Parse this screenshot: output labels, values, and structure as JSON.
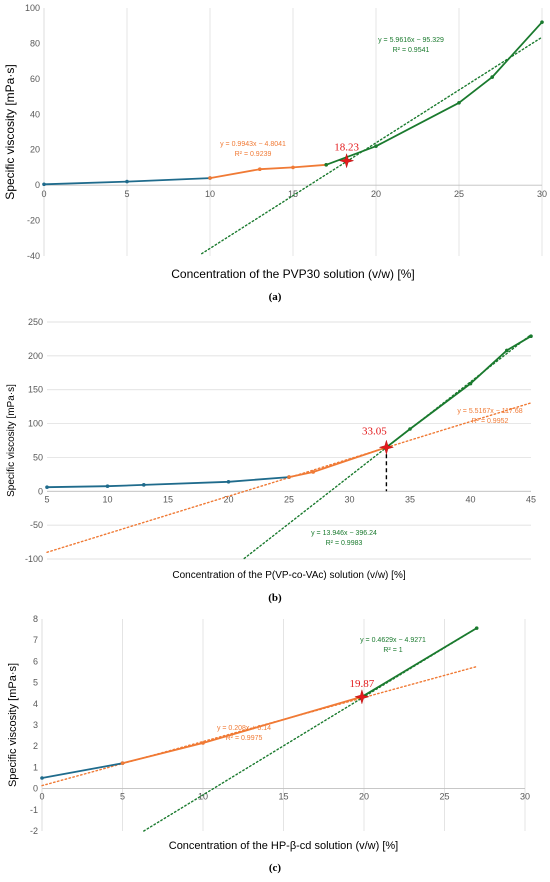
{
  "colors": {
    "blue": "#1f6b8c",
    "orange": "#f07a35",
    "green": "#1a7a2e",
    "red": "#e31a1c",
    "grid": "#d9d9d9"
  },
  "chart_data": [
    {
      "type": "line",
      "panel_label": "(a)",
      "xlabel": "Concentration of the PVP30 solution (v/w) [%]",
      "ylabel": "Specific viscosity [mPa·s]",
      "xlim": [
        0,
        30
      ],
      "ylim": [
        -40,
        100
      ],
      "xticks": [
        "0",
        "5",
        "10",
        "15",
        "20",
        "25",
        "30"
      ],
      "yticks": [
        "-40",
        "-20",
        "0",
        "20",
        "40",
        "60",
        "80",
        "100"
      ],
      "grid": "vertical",
      "series": [
        {
          "color": "blue",
          "x": [
            0,
            5,
            10
          ],
          "y": [
            0.5,
            2,
            4
          ]
        },
        {
          "color": "orange",
          "x": [
            10,
            13,
            15,
            17
          ],
          "y": [
            4,
            9,
            10,
            11.5
          ]
        },
        {
          "color": "green",
          "x": [
            17,
            20,
            25,
            27,
            30
          ],
          "y": [
            11.5,
            22,
            46.5,
            61,
            92
          ]
        }
      ],
      "trendlines": [
        {
          "color": "green",
          "equation": "y = 5.9616x − 95.329",
          "r2": "R² = 0.9541",
          "x_range": [
            9.5,
            30
          ]
        }
      ],
      "intersection": {
        "x": 18.23,
        "y": 13.8,
        "label": "18.23",
        "dropline": false
      },
      "annotations": [
        {
          "text": "y = 0.9943x − 4.8041",
          "sub": "R² = 0.9239",
          "color": "orange"
        }
      ]
    },
    {
      "type": "line",
      "panel_label": "(b)",
      "xlabel": "Concentration of the P(VP-co-VAc) solution (v/w) [%]",
      "ylabel": "Specific viscosity [mPa·s]",
      "xlim": [
        5,
        45
      ],
      "ylim": [
        -100,
        250
      ],
      "xticks": [
        "5",
        "10",
        "15",
        "20",
        "25",
        "30",
        "35",
        "40",
        "45"
      ],
      "yticks": [
        "-100",
        "-50",
        "0",
        "50",
        "100",
        "150",
        "200",
        "250"
      ],
      "grid": "horizontal",
      "series": [
        {
          "color": "blue",
          "x": [
            5,
            10,
            13,
            20,
            25
          ],
          "y": [
            6,
            7.5,
            9.5,
            14,
            21
          ]
        },
        {
          "color": "orange",
          "x": [
            25,
            27,
            33.05
          ],
          "y": [
            21,
            28.5,
            65
          ]
        },
        {
          "color": "green",
          "x": [
            33.05,
            35,
            40,
            43,
            45
          ],
          "y": [
            65,
            92,
            159,
            208,
            229
          ]
        }
      ],
      "trendlines": [
        {
          "color": "orange",
          "equation": "y = 5.5167x − 117.68",
          "r2": "R² = 0.9952",
          "x_range": [
            5,
            45
          ]
        },
        {
          "color": "green",
          "equation": "y = 13.946x − 396.24",
          "r2": "R² = 0.9983",
          "x_range": [
            21.3,
            45
          ]
        }
      ],
      "intersection": {
        "x": 33.05,
        "y": 65,
        "label": "33.05",
        "dropline": true
      }
    },
    {
      "type": "line",
      "panel_label": "(c)",
      "xlabel": "Concentration of the HP-β-cd solution (v/w) [%]",
      "ylabel": "Specific viscosity [mPa·s]",
      "xlim": [
        0,
        30
      ],
      "ylim": [
        -2,
        8
      ],
      "xticks": [
        "0",
        "5",
        "10",
        "15",
        "20",
        "25",
        "30"
      ],
      "yticks": [
        "-2",
        "-1",
        "0",
        "1",
        "2",
        "3",
        "4",
        "5",
        "6",
        "7",
        "8"
      ],
      "grid": "vertical",
      "series": [
        {
          "color": "blue",
          "x": [
            0,
            5
          ],
          "y": [
            0.5,
            1.2
          ]
        },
        {
          "color": "orange",
          "x": [
            5,
            10,
            19.87
          ],
          "y": [
            1.2,
            2.15,
            4.33
          ]
        },
        {
          "color": "green",
          "x": [
            19.87,
            27
          ],
          "y": [
            4.33,
            7.57
          ]
        }
      ],
      "trendlines": [
        {
          "color": "orange",
          "equation": "y = 0.208x + 0.14",
          "r2": "R² = 0.9975",
          "x_range": [
            0,
            27
          ]
        },
        {
          "color": "green",
          "equation": "y = 0.4629x − 4.9271",
          "r2": "R² = 1",
          "x_range": [
            6.3,
            27
          ]
        }
      ],
      "intersection": {
        "x": 19.87,
        "y": 4.33,
        "label": "19.87",
        "dropline": false
      }
    }
  ]
}
